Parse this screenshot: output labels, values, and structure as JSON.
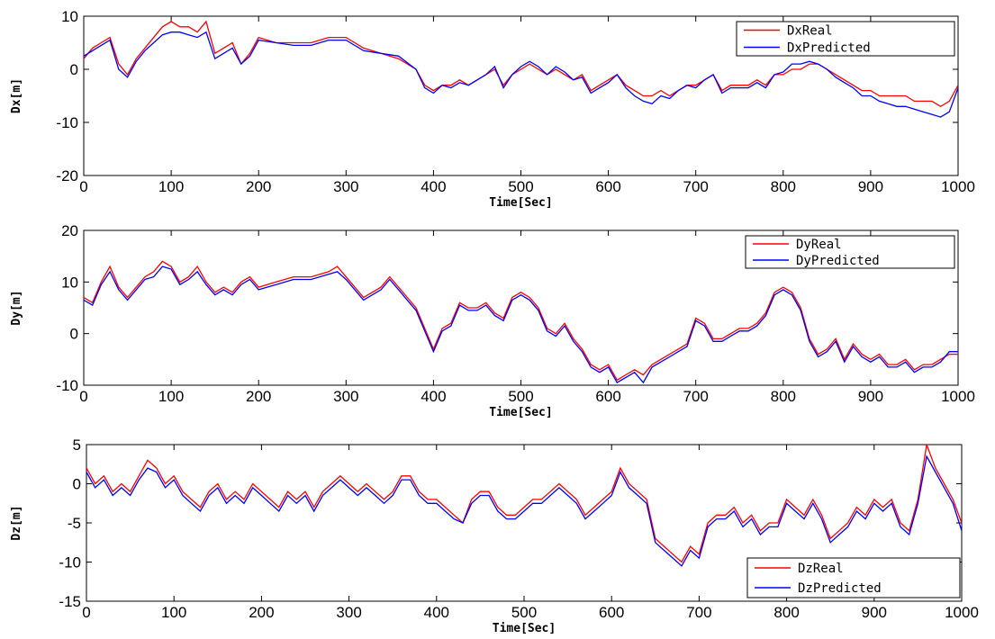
{
  "chart_data": [
    {
      "type": "line",
      "xlabel": "Time[Sec]",
      "ylabel": "Dx[m]",
      "xlim": [
        0,
        1000
      ],
      "ylim": [
        -20,
        10
      ],
      "xticks": [
        "0",
        "100",
        "200",
        "300",
        "400",
        "500",
        "600",
        "700",
        "800",
        "900",
        "1000"
      ],
      "yticks": [
        "-20",
        "-10",
        "0",
        "10"
      ],
      "legend_position": "top-right",
      "x": [
        0,
        10,
        20,
        30,
        40,
        50,
        60,
        70,
        80,
        90,
        100,
        110,
        120,
        130,
        140,
        150,
        160,
        170,
        180,
        190,
        200,
        220,
        240,
        260,
        280,
        300,
        320,
        340,
        360,
        380,
        390,
        400,
        410,
        420,
        430,
        440,
        450,
        460,
        470,
        480,
        490,
        500,
        510,
        520,
        530,
        540,
        550,
        560,
        570,
        580,
        590,
        600,
        610,
        620,
        630,
        640,
        650,
        660,
        670,
        680,
        690,
        700,
        710,
        720,
        730,
        740,
        750,
        760,
        770,
        780,
        790,
        800,
        810,
        820,
        830,
        840,
        850,
        860,
        870,
        880,
        890,
        900,
        910,
        920,
        930,
        940,
        950,
        960,
        970,
        980,
        990,
        1000
      ],
      "series": [
        {
          "name": "DxReal",
          "color": "#ff0000",
          "values": [
            2,
            4,
            5,
            6,
            1,
            -1,
            2,
            4,
            6,
            8,
            9,
            8,
            8,
            7,
            9,
            3,
            4,
            5,
            1,
            3,
            6,
            5,
            5,
            5,
            6,
            6,
            4,
            3,
            2,
            0,
            -3,
            -4,
            -3,
            -3,
            -2,
            -3,
            -2,
            -1,
            0,
            -3,
            -1,
            0,
            1,
            0,
            -1,
            0,
            -1,
            -2,
            -1,
            -4,
            -3,
            -2,
            -1,
            -3,
            -4,
            -5,
            -5,
            -4,
            -5,
            -4,
            -3,
            -3,
            -2,
            -1,
            -4,
            -3,
            -3,
            -3,
            -2,
            -3,
            -1,
            -1,
            0,
            0,
            1,
            1,
            0,
            -1,
            -2,
            -3,
            -4,
            -4,
            -5,
            -5,
            -5,
            -5,
            -6,
            -6,
            -6,
            -7,
            -6,
            -3
          ]
        },
        {
          "name": "DxPredicted",
          "color": "#0000ff",
          "values": [
            2.5,
            3.5,
            4.5,
            5.5,
            0,
            -1.5,
            1.5,
            3.5,
            5,
            6.5,
            7,
            7,
            6.5,
            6,
            7,
            2,
            3,
            4,
            1,
            2.5,
            5.5,
            5,
            4.5,
            4.5,
            5.5,
            5.5,
            3.5,
            3,
            2.5,
            0,
            -3.5,
            -4.5,
            -3,
            -3.5,
            -2.5,
            -3,
            -2,
            -1,
            0.5,
            -3.5,
            -1,
            0.5,
            1.5,
            0.5,
            -1,
            0.5,
            -0.5,
            -2,
            -1.5,
            -4.5,
            -3.5,
            -2.5,
            -1,
            -3.5,
            -5,
            -6,
            -6.5,
            -5,
            -5.5,
            -4,
            -3,
            -3.5,
            -2,
            -1,
            -4.5,
            -3.5,
            -3.5,
            -3.5,
            -2.5,
            -3.5,
            -1,
            -0.5,
            1,
            1,
            1.5,
            1,
            0,
            -1.5,
            -2.5,
            -3.5,
            -5,
            -5,
            -6,
            -6.5,
            -7,
            -7,
            -7.5,
            -8,
            -8.5,
            -9,
            -8,
            -3.5
          ]
        }
      ]
    },
    {
      "type": "line",
      "xlabel": "Time[Sec]",
      "ylabel": "Dy[m]",
      "xlim": [
        0,
        1000
      ],
      "ylim": [
        -10,
        20
      ],
      "xticks": [
        "0",
        "100",
        "200",
        "300",
        "400",
        "500",
        "600",
        "700",
        "800",
        "900",
        "1000"
      ],
      "yticks": [
        "-10",
        "0",
        "10",
        "20"
      ],
      "legend_position": "top-right",
      "x": [
        0,
        10,
        20,
        30,
        40,
        50,
        60,
        70,
        80,
        90,
        100,
        110,
        120,
        130,
        140,
        150,
        160,
        170,
        180,
        190,
        200,
        220,
        240,
        260,
        280,
        290,
        300,
        320,
        340,
        350,
        360,
        370,
        380,
        390,
        400,
        410,
        420,
        430,
        440,
        450,
        460,
        470,
        480,
        490,
        500,
        510,
        520,
        530,
        540,
        550,
        560,
        570,
        580,
        590,
        600,
        610,
        620,
        630,
        640,
        650,
        660,
        670,
        680,
        690,
        700,
        710,
        720,
        730,
        740,
        750,
        760,
        770,
        780,
        790,
        800,
        810,
        820,
        830,
        840,
        850,
        860,
        870,
        880,
        890,
        900,
        910,
        920,
        930,
        940,
        950,
        960,
        970,
        980,
        990,
        1000
      ],
      "series": [
        {
          "name": "DyReal",
          "color": "#ff0000",
          "values": [
            7,
            6,
            10,
            13,
            9,
            7,
            9,
            11,
            12,
            14,
            13,
            10,
            11,
            13,
            10,
            8,
            9,
            8,
            10,
            11,
            9,
            10,
            11,
            11,
            12,
            13,
            11,
            7,
            9,
            11,
            9,
            7,
            5,
            1,
            -3,
            1,
            2,
            6,
            5,
            5,
            6,
            4,
            3,
            7,
            8,
            7,
            5,
            1,
            0,
            2,
            -1,
            -3,
            -6,
            -7,
            -6,
            -9,
            -8,
            -7,
            -8,
            -6,
            -5,
            -4,
            -3,
            -2,
            3,
            2,
            -1,
            -1,
            0,
            1,
            1,
            2,
            4,
            8,
            9,
            8,
            5,
            -1,
            -4,
            -3,
            -1,
            -5,
            -2,
            -4,
            -5,
            -4,
            -6,
            -6,
            -5,
            -7,
            -6,
            -6,
            -5,
            -4,
            -4
          ]
        },
        {
          "name": "DyPredicted",
          "color": "#0000ff",
          "values": [
            6.5,
            5.5,
            9.5,
            12,
            8.5,
            6.5,
            8.5,
            10.5,
            11,
            13,
            12.5,
            9.5,
            10.5,
            12,
            9.5,
            7.5,
            8.5,
            7.5,
            9.5,
            10.5,
            8.5,
            9.5,
            10.5,
            10.5,
            11.5,
            12,
            10.5,
            6.5,
            8.5,
            10.5,
            8.5,
            6.5,
            4.5,
            0.5,
            -3.5,
            0.5,
            1.5,
            5.5,
            4.5,
            4.5,
            5.5,
            3.5,
            2.5,
            6.5,
            7.5,
            6.5,
            4.5,
            0.5,
            -0.5,
            1.5,
            -1.5,
            -3.5,
            -6.5,
            -7.5,
            -6.5,
            -9.5,
            -8.5,
            -7.5,
            -9.5,
            -6.5,
            -5.5,
            -4.5,
            -3.5,
            -2.5,
            2.5,
            1.5,
            -1.5,
            -1.5,
            -0.5,
            0.5,
            0.5,
            1.5,
            3.5,
            7.5,
            8.5,
            7.5,
            4.5,
            -1.5,
            -4.5,
            -3.5,
            -1.5,
            -5.5,
            -2.5,
            -4.5,
            -5.5,
            -4.5,
            -6.5,
            -6.5,
            -5.5,
            -7.5,
            -6.5,
            -6.5,
            -5.5,
            -3.5,
            -3.5
          ]
        }
      ]
    },
    {
      "type": "line",
      "xlabel": "Time[Sec]",
      "ylabel": "Dz[m]",
      "xlim": [
        0,
        1000
      ],
      "ylim": [
        -15,
        5
      ],
      "xticks": [
        "0",
        "100",
        "200",
        "300",
        "400",
        "500",
        "600",
        "700",
        "800",
        "900",
        "1000"
      ],
      "yticks": [
        "-15",
        "-10",
        "-5",
        "0",
        "5"
      ],
      "legend_position": "bottom-right",
      "x": [
        0,
        10,
        20,
        30,
        40,
        50,
        60,
        70,
        80,
        90,
        100,
        110,
        120,
        130,
        140,
        150,
        160,
        170,
        180,
        190,
        200,
        210,
        220,
        230,
        240,
        250,
        260,
        270,
        280,
        290,
        300,
        310,
        320,
        330,
        340,
        350,
        360,
        370,
        380,
        390,
        400,
        410,
        420,
        430,
        440,
        450,
        460,
        470,
        480,
        490,
        500,
        510,
        520,
        530,
        540,
        550,
        560,
        570,
        580,
        590,
        600,
        610,
        620,
        630,
        640,
        650,
        660,
        670,
        680,
        690,
        700,
        710,
        720,
        730,
        740,
        750,
        760,
        770,
        780,
        790,
        800,
        810,
        820,
        830,
        840,
        850,
        860,
        870,
        880,
        890,
        900,
        910,
        920,
        930,
        940,
        950,
        960,
        970,
        980,
        990,
        1000
      ],
      "series": [
        {
          "name": "DzReal",
          "color": "#ff0000",
          "values": [
            2,
            0,
            1,
            -1,
            0,
            -1,
            1,
            3,
            2,
            0,
            1,
            -1,
            -2,
            -3,
            -1,
            0,
            -2,
            -1,
            -2,
            0,
            -1,
            -2,
            -3,
            -1,
            -2,
            -1,
            -3,
            -1,
            0,
            1,
            0,
            -1,
            0,
            -1,
            -2,
            -1,
            1,
            1,
            -1,
            -2,
            -2,
            -3,
            -4,
            -5,
            -2,
            -1,
            -1,
            -3,
            -4,
            -4,
            -3,
            -2,
            -2,
            -1,
            0,
            -1,
            -2,
            -4,
            -3,
            -2,
            -1,
            2,
            0,
            -1,
            -2,
            -7,
            -8,
            -9,
            -10,
            -8,
            -9,
            -5,
            -4,
            -4,
            -3,
            -5,
            -4,
            -6,
            -5,
            -5,
            -2,
            -3,
            -4,
            -2,
            -4,
            -7,
            -6,
            -5,
            -3,
            -4,
            -2,
            -3,
            -2,
            -5,
            -6,
            -2,
            5,
            2,
            0,
            -2,
            -5
          ]
        },
        {
          "name": "DzPredicted",
          "color": "#0000ff",
          "values": [
            1.5,
            -0.5,
            0.5,
            -1.5,
            -0.5,
            -1.5,
            0.5,
            2,
            1.5,
            -0.5,
            0.5,
            -1.5,
            -2.5,
            -3.5,
            -1.5,
            -0.5,
            -2.5,
            -1.5,
            -2.5,
            -0.5,
            -1.5,
            -2.5,
            -3.5,
            -1.5,
            -2.5,
            -1.5,
            -3.5,
            -1.5,
            -0.5,
            0.5,
            -0.5,
            -1.5,
            -0.5,
            -1.5,
            -2.5,
            -1.5,
            0.5,
            0.5,
            -1.5,
            -2.5,
            -2.5,
            -3.5,
            -4.5,
            -5,
            -2.5,
            -1.5,
            -1.5,
            -3.5,
            -4.5,
            -4.5,
            -3.5,
            -2.5,
            -2.5,
            -1.5,
            -0.5,
            -1.5,
            -2.5,
            -4.5,
            -3.5,
            -2.5,
            -1.5,
            1.5,
            -0.5,
            -1.5,
            -2.5,
            -7.5,
            -8.5,
            -9.5,
            -10.5,
            -8.5,
            -9.5,
            -5.5,
            -4.5,
            -4.5,
            -3.5,
            -5.5,
            -4.5,
            -6.5,
            -5.5,
            -5.5,
            -2.5,
            -3.5,
            -4.5,
            -2.5,
            -4.5,
            -7.5,
            -6.5,
            -5.5,
            -3.5,
            -4.5,
            -2.5,
            -3.5,
            -2.5,
            -5.5,
            -6.5,
            -2.5,
            3.5,
            1.5,
            -0.5,
            -2.5,
            -6
          ]
        }
      ]
    }
  ]
}
